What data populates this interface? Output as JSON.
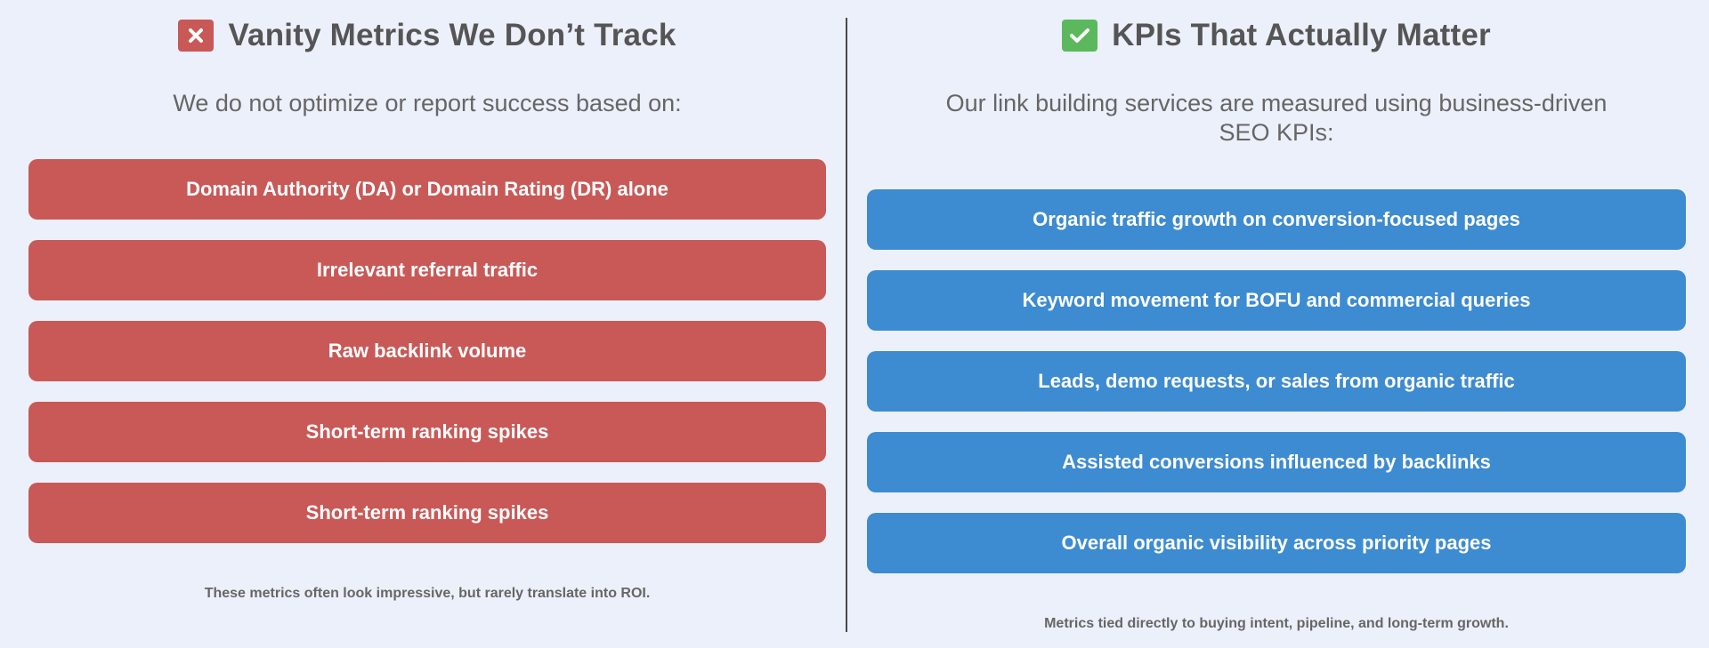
{
  "left": {
    "title": "Vanity Metrics We Don’t Track",
    "icon": "cross-mark-icon",
    "icon_color": "#c85957",
    "subtitle": "We do not optimize or report success based on:",
    "items": [
      {
        "label": "Domain Authority (DA) or Domain Rating (DR) alone"
      },
      {
        "label": "Irrelevant referral traffic"
      },
      {
        "label": "Raw backlink volume"
      },
      {
        "label": "Short-term ranking spikes"
      },
      {
        "label": "Short-term ranking spikes"
      }
    ],
    "item_color": "#c85957",
    "footnote": "These metrics often look impressive, but rarely translate into ROI."
  },
  "right": {
    "title": "KPIs That Actually Matter",
    "icon": "check-mark-icon",
    "icon_color": "#5cb85c",
    "subtitle": "Our link building services are measured using business-driven SEO KPIs:",
    "items": [
      {
        "label": "Organic traffic growth on conversion-focused pages"
      },
      {
        "label": "Keyword movement for BOFU and commercial queries"
      },
      {
        "label": "Leads, demo requests, or sales from organic traffic"
      },
      {
        "label": "Assisted conversions influenced by backlinks"
      },
      {
        "label": "Overall organic visibility across priority pages"
      }
    ],
    "item_color": "#3d8bd1",
    "footnote": "Metrics tied directly to buying intent, pipeline, and long-term growth."
  },
  "background_color": "#ecf0fa"
}
